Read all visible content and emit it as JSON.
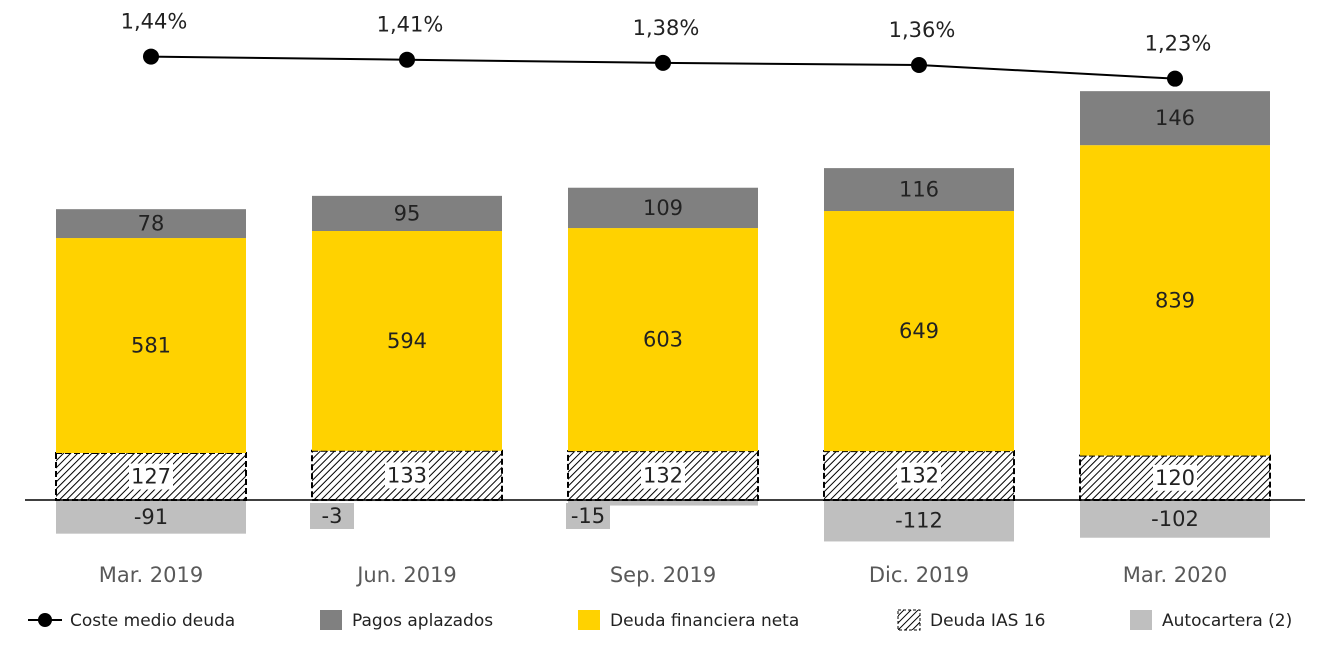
{
  "chart_data": {
    "type": "bar",
    "stacked": true,
    "categories": [
      "Mar. 2019",
      "Jun. 2019",
      "Sep. 2019",
      "Dic. 2019",
      "Mar. 2020"
    ],
    "series": [
      {
        "name": "Coste medio deuda",
        "type": "line",
        "axis": "y2",
        "color": "#000000",
        "values": [
          1.44,
          1.41,
          1.38,
          1.36,
          1.23
        ],
        "value_labels": [
          "1,44%",
          "1,41%",
          "1,38%",
          "1,36%",
          "1,23%"
        ]
      },
      {
        "name": "Pagos aplazados",
        "type": "bar",
        "color": "#808080",
        "values": [
          78,
          95,
          109,
          116,
          146
        ]
      },
      {
        "name": "Deuda financiera neta",
        "type": "bar",
        "color": "#ffd200",
        "values": [
          581,
          594,
          603,
          649,
          839
        ]
      },
      {
        "name": "Deuda IAS 16",
        "type": "bar",
        "color": "#000000",
        "pattern": "hatch",
        "values": [
          127,
          133,
          132,
          132,
          120
        ]
      },
      {
        "name": "Autocartera (2)",
        "type": "bar",
        "color": "#bfbfbf",
        "values": [
          -91,
          -3,
          -15,
          -112,
          -102
        ]
      }
    ],
    "ylim": [
      -200,
      1200
    ],
    "y2lim": [
      0.6,
      1.55
    ],
    "grid": false,
    "legend": "bottom"
  }
}
